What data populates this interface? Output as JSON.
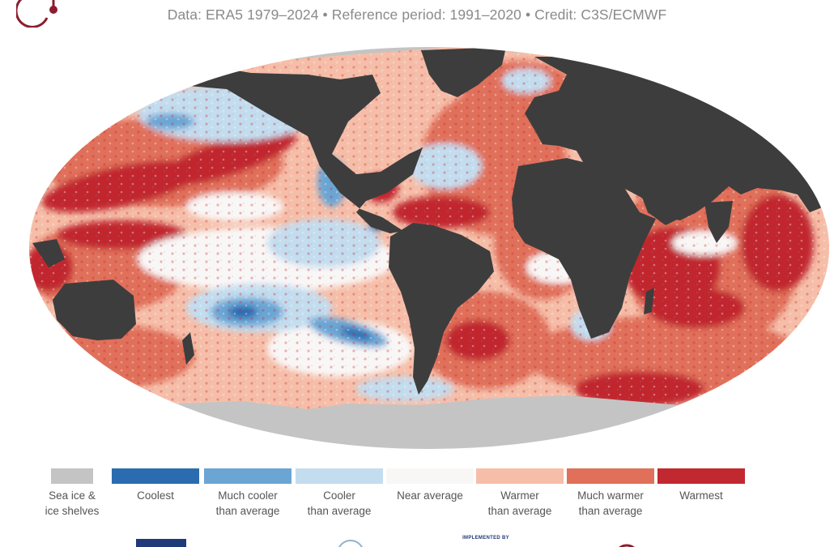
{
  "header": {
    "subtitle": "Data: ERA5 1979–2024 • Reference period: 1991–2020 • Credit: C3S/ECMWF"
  },
  "colors": {
    "land": "#3d3d3d",
    "sea_ice": "#c4c4c4",
    "coolest": "#2b6cb0",
    "much_cooler": "#6aa5d4",
    "cooler": "#c3ddef",
    "near_average": "#f9f7f6",
    "warmer": "#f6bea8",
    "much_warmer": "#e1705a",
    "warmest": "#c1282f",
    "logo": "#8c1d2e"
  },
  "legend": {
    "items": [
      {
        "label": "Sea ice &\nice shelves",
        "color": "#c4c4c4"
      },
      {
        "label": "Coolest",
        "color": "#2b6cb0"
      },
      {
        "label": "Much cooler\nthan average",
        "color": "#6aa5d4"
      },
      {
        "label": "Cooler\nthan average",
        "color": "#c3ddef"
      },
      {
        "label": "Near average",
        "color": "#f9f7f6"
      },
      {
        "label": "Warmer\nthan average",
        "color": "#f6bea8"
      },
      {
        "label": "Much warmer\nthan average",
        "color": "#e1705a"
      },
      {
        "label": "Warmest",
        "color": "#c1282f"
      }
    ]
  },
  "footer": {
    "implemented_by": "IMPLEMENTED BY"
  }
}
